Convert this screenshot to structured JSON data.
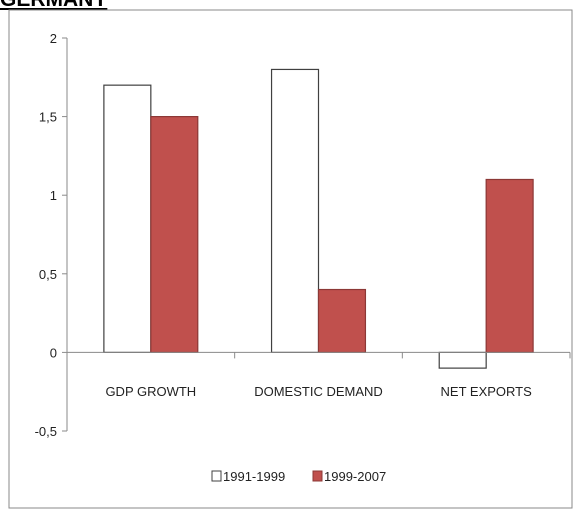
{
  "header": {
    "title": "GERMANY"
  },
  "chart_data": {
    "type": "bar",
    "categories": [
      "GDP GROWTH",
      "DOMESTIC DEMAND",
      "NET EXPORTS"
    ],
    "series": [
      {
        "name": "1991-1999",
        "values": [
          1.7,
          1.8,
          -0.1
        ],
        "color": "#ffffff",
        "stroke": "#404040"
      },
      {
        "name": "1999-2007",
        "values": [
          1.5,
          0.4,
          1.1
        ],
        "color": "#c0504d",
        "stroke": "#8c3836"
      }
    ],
    "yticks": [
      {
        "value": 2,
        "label": "2"
      },
      {
        "value": 1.5,
        "label": "1,5"
      },
      {
        "value": 1,
        "label": "1"
      },
      {
        "value": 0.5,
        "label": "0,5"
      },
      {
        "value": 0,
        "label": "0"
      },
      {
        "value": -0.5,
        "label": "-0,5"
      }
    ],
    "ylim": [
      -0.5,
      2
    ],
    "grid": false,
    "legend_position": "bottom"
  }
}
